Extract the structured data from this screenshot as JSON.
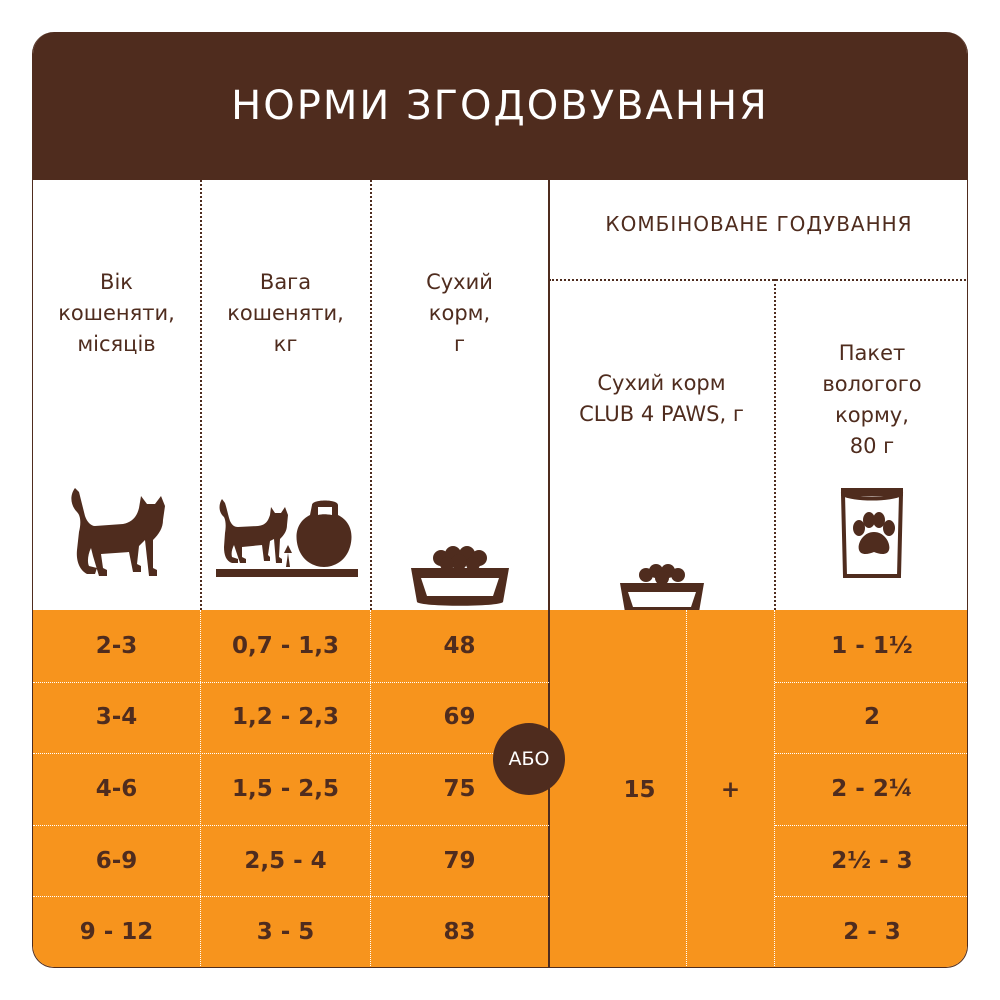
{
  "title": "НОРМИ ЗГОДОВУВАННЯ",
  "columns": {
    "age": [
      "Вік",
      "кошеняти,",
      "місяців"
    ],
    "weight": [
      "Вага",
      "кошеняти,",
      "кг"
    ],
    "dry": [
      "Сухий",
      "корм,",
      "г"
    ],
    "combined_title": "КОМБІНОВАНЕ ГОДУВАННЯ",
    "combined_dry": [
      "Сухий корм",
      "CLUB 4 PAWS, г"
    ],
    "combined_wet": [
      "Пакет",
      "вологого",
      "корму,",
      "80 г"
    ]
  },
  "icons": {
    "age": "cat-silhouette-icon",
    "weight": "cat-with-kettlebell-icon",
    "dry": "food-bowl-icon",
    "combined_dry": "small-food-bowl-icon",
    "combined_wet": "wet-food-pouch-paw-icon"
  },
  "rows": [
    {
      "age": "2-3",
      "weight": "0,7 - 1,3",
      "dry": "48",
      "wet": "1 - 1½"
    },
    {
      "age": "3-4",
      "weight": "1,2 - 2,3",
      "dry": "69",
      "wet": "2"
    },
    {
      "age": "4-6",
      "weight": "1,5 - 2,5",
      "dry": "75",
      "wet": "2 - 2¼"
    },
    {
      "age": "6-9",
      "weight": "2,5 - 4",
      "dry": "79",
      "wet": "2½ - 3"
    },
    {
      "age": "9 - 12",
      "weight": "3 - 5",
      "dry": "83",
      "wet": "2 - 3"
    }
  ],
  "combined": {
    "or_label": "АБО",
    "dry_value": "15",
    "plus": "+"
  },
  "colors": {
    "brown": "#4f2c1e",
    "orange": "#f7941d",
    "white": "#ffffff"
  }
}
